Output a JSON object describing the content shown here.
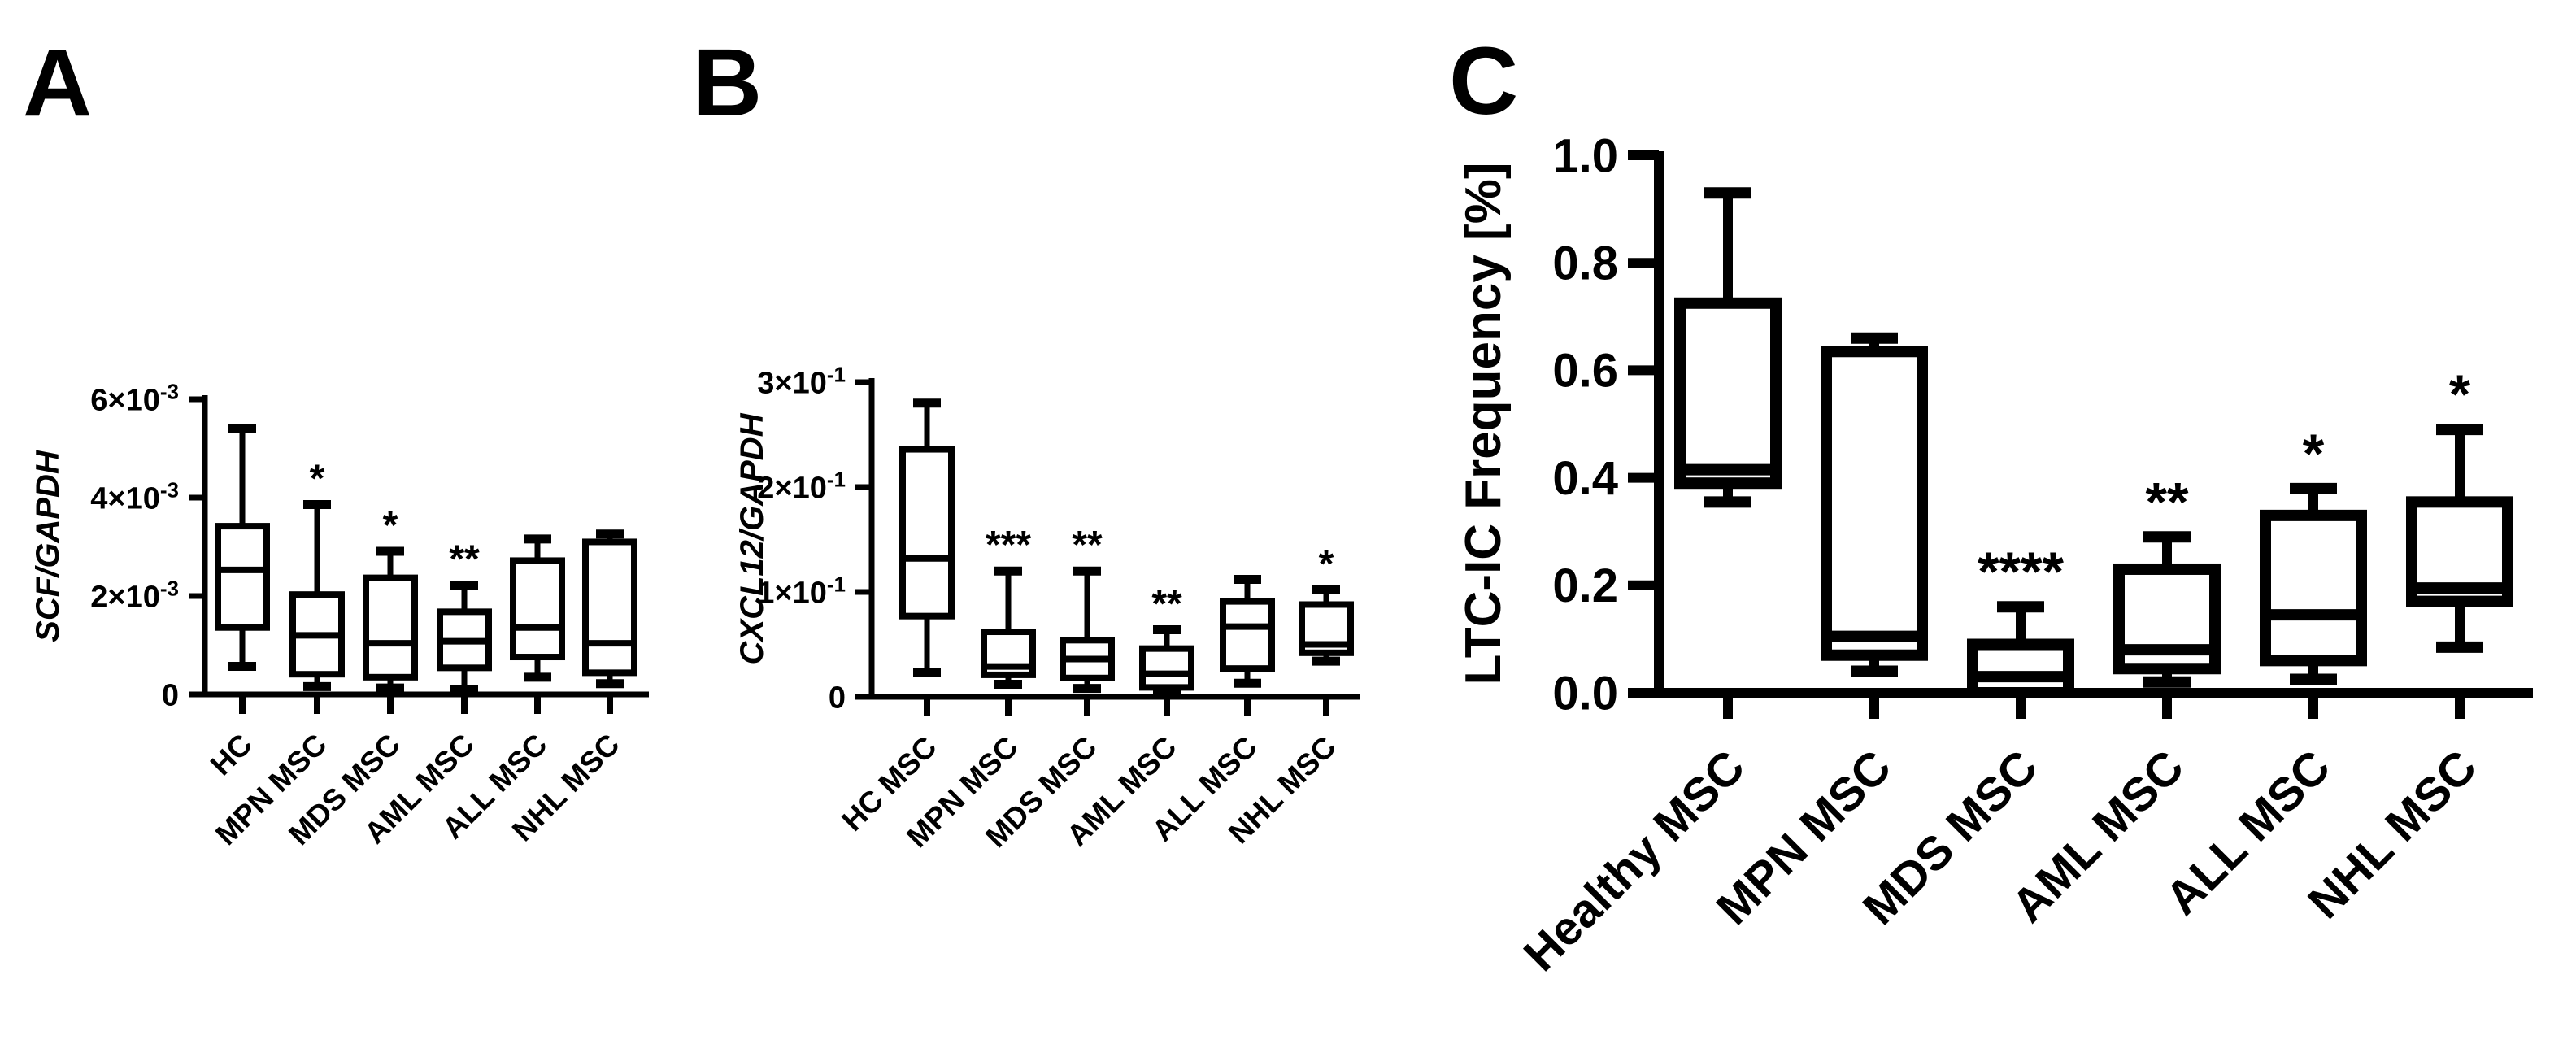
{
  "figure": {
    "background": "#ffffff",
    "ink": "#000000"
  },
  "chart_data": [
    {
      "type": "box",
      "panel_label": "A",
      "title": "",
      "xlabel": "",
      "ylabel": "SCF/GAPDH",
      "ylabel_italic": true,
      "ylim": [
        0,
        0.006
      ],
      "grid": false,
      "legend": null,
      "yticks": [
        {
          "value": 0,
          "label": "0",
          "exp": null
        },
        {
          "value": 0.002,
          "label": "2×10",
          "exp": "-3"
        },
        {
          "value": 0.004,
          "label": "4×10",
          "exp": "-3"
        },
        {
          "value": 0.006,
          "label": "6×10",
          "exp": "-3"
        }
      ],
      "categories": [
        "HC",
        "MPN MSC",
        "MDS MSC",
        "AML MSC",
        "ALL MSC",
        "NHL MSC"
      ],
      "series": [
        {
          "category": "HC",
          "low": 0.00057,
          "q1": 0.00136,
          "median": 0.00253,
          "q3": 0.00342,
          "high": 0.00541,
          "significance": ""
        },
        {
          "category": "MPN MSC",
          "low": 0.00016,
          "q1": 0.00041,
          "median": 0.0012,
          "q3": 0.00203,
          "high": 0.00386,
          "significance": "*"
        },
        {
          "category": "MDS MSC",
          "low": 0.00013,
          "q1": 0.00035,
          "median": 0.00104,
          "q3": 0.00237,
          "high": 0.00291,
          "significance": "*"
        },
        {
          "category": "AML MSC",
          "low": 9e-05,
          "q1": 0.00054,
          "median": 0.00108,
          "q3": 0.00168,
          "high": 0.00222,
          "significance": "**"
        },
        {
          "category": "ALL MSC",
          "low": 0.00035,
          "q1": 0.00076,
          "median": 0.00136,
          "q3": 0.00272,
          "high": 0.00316,
          "significance": ""
        },
        {
          "category": "NHL MSC",
          "low": 0.00022,
          "q1": 0.00044,
          "median": 0.00104,
          "q3": 0.0031,
          "high": 0.00326,
          "significance": ""
        }
      ]
    },
    {
      "type": "box",
      "panel_label": "B",
      "title": "",
      "xlabel": "",
      "ylabel": "CXCL12/GAPDH",
      "ylabel_italic": true,
      "ylim": [
        0,
        0.3
      ],
      "grid": false,
      "legend": null,
      "yticks": [
        {
          "value": 0,
          "label": "0",
          "exp": null
        },
        {
          "value": 0.1,
          "label": "1×10",
          "exp": "-1"
        },
        {
          "value": 0.2,
          "label": "2×10",
          "exp": "-1"
        },
        {
          "value": 0.3,
          "label": "3×10",
          "exp": "-1"
        }
      ],
      "categories": [
        "HC MSC",
        "MPN MSC",
        "MDS MSC",
        "AML MSC",
        "ALL MSC",
        "NHL MSC"
      ],
      "series": [
        {
          "category": "HC MSC",
          "low": 0.023,
          "q1": 0.077,
          "median": 0.132,
          "q3": 0.236,
          "high": 0.28,
          "significance": ""
        },
        {
          "category": "MPN MSC",
          "low": 0.012,
          "q1": 0.021,
          "median": 0.029,
          "q3": 0.062,
          "high": 0.12,
          "significance": "***"
        },
        {
          "category": "MDS MSC",
          "low": 0.008,
          "q1": 0.018,
          "median": 0.036,
          "q3": 0.054,
          "high": 0.12,
          "significance": "**"
        },
        {
          "category": "AML MSC",
          "low": 0.002,
          "q1": 0.009,
          "median": 0.022,
          "q3": 0.046,
          "high": 0.064,
          "significance": "**"
        },
        {
          "category": "ALL MSC",
          "low": 0.013,
          "q1": 0.027,
          "median": 0.067,
          "q3": 0.091,
          "high": 0.112,
          "significance": ""
        },
        {
          "category": "NHL MSC",
          "low": 0.034,
          "q1": 0.042,
          "median": 0.05,
          "q3": 0.088,
          "high": 0.102,
          "significance": "*"
        }
      ]
    },
    {
      "type": "box",
      "panel_label": "C",
      "title": "",
      "xlabel": "",
      "ylabel": "LTC-IC Frequency [%]",
      "ylabel_italic": false,
      "ylim": [
        0,
        1.0
      ],
      "grid": false,
      "legend": null,
      "yticks": [
        {
          "value": 0,
          "label": "0.0",
          "exp": null
        },
        {
          "value": 0.2,
          "label": "0.2",
          "exp": null
        },
        {
          "value": 0.4,
          "label": "0.4",
          "exp": null
        },
        {
          "value": 0.6,
          "label": "0.6",
          "exp": null
        },
        {
          "value": 0.8,
          "label": "0.8",
          "exp": null
        },
        {
          "value": 1.0,
          "label": "1.0",
          "exp": null
        }
      ],
      "categories": [
        "Healthy MSC",
        "MPN MSC",
        "MDS MSC",
        "AML MSC",
        "ALL MSC",
        "NHL MSC"
      ],
      "series": [
        {
          "category": "Healthy MSC",
          "low": 0.355,
          "q1": 0.39,
          "median": 0.415,
          "q3": 0.725,
          "high": 0.93,
          "significance": ""
        },
        {
          "category": "MPN MSC",
          "low": 0.04,
          "q1": 0.07,
          "median": 0.105,
          "q3": 0.635,
          "high": 0.66,
          "significance": ""
        },
        {
          "category": "MDS MSC",
          "low": 0.0,
          "q1": 0.0,
          "median": 0.03,
          "q3": 0.09,
          "high": 0.16,
          "significance": "****"
        },
        {
          "category": "AML MSC",
          "low": 0.02,
          "q1": 0.045,
          "median": 0.08,
          "q3": 0.23,
          "high": 0.29,
          "significance": "**"
        },
        {
          "category": "ALL MSC",
          "low": 0.025,
          "q1": 0.06,
          "median": 0.145,
          "q3": 0.33,
          "high": 0.38,
          "significance": "*"
        },
        {
          "category": "NHL MSC",
          "low": 0.085,
          "q1": 0.17,
          "median": 0.195,
          "q3": 0.355,
          "high": 0.49,
          "significance": "*"
        }
      ]
    }
  ]
}
